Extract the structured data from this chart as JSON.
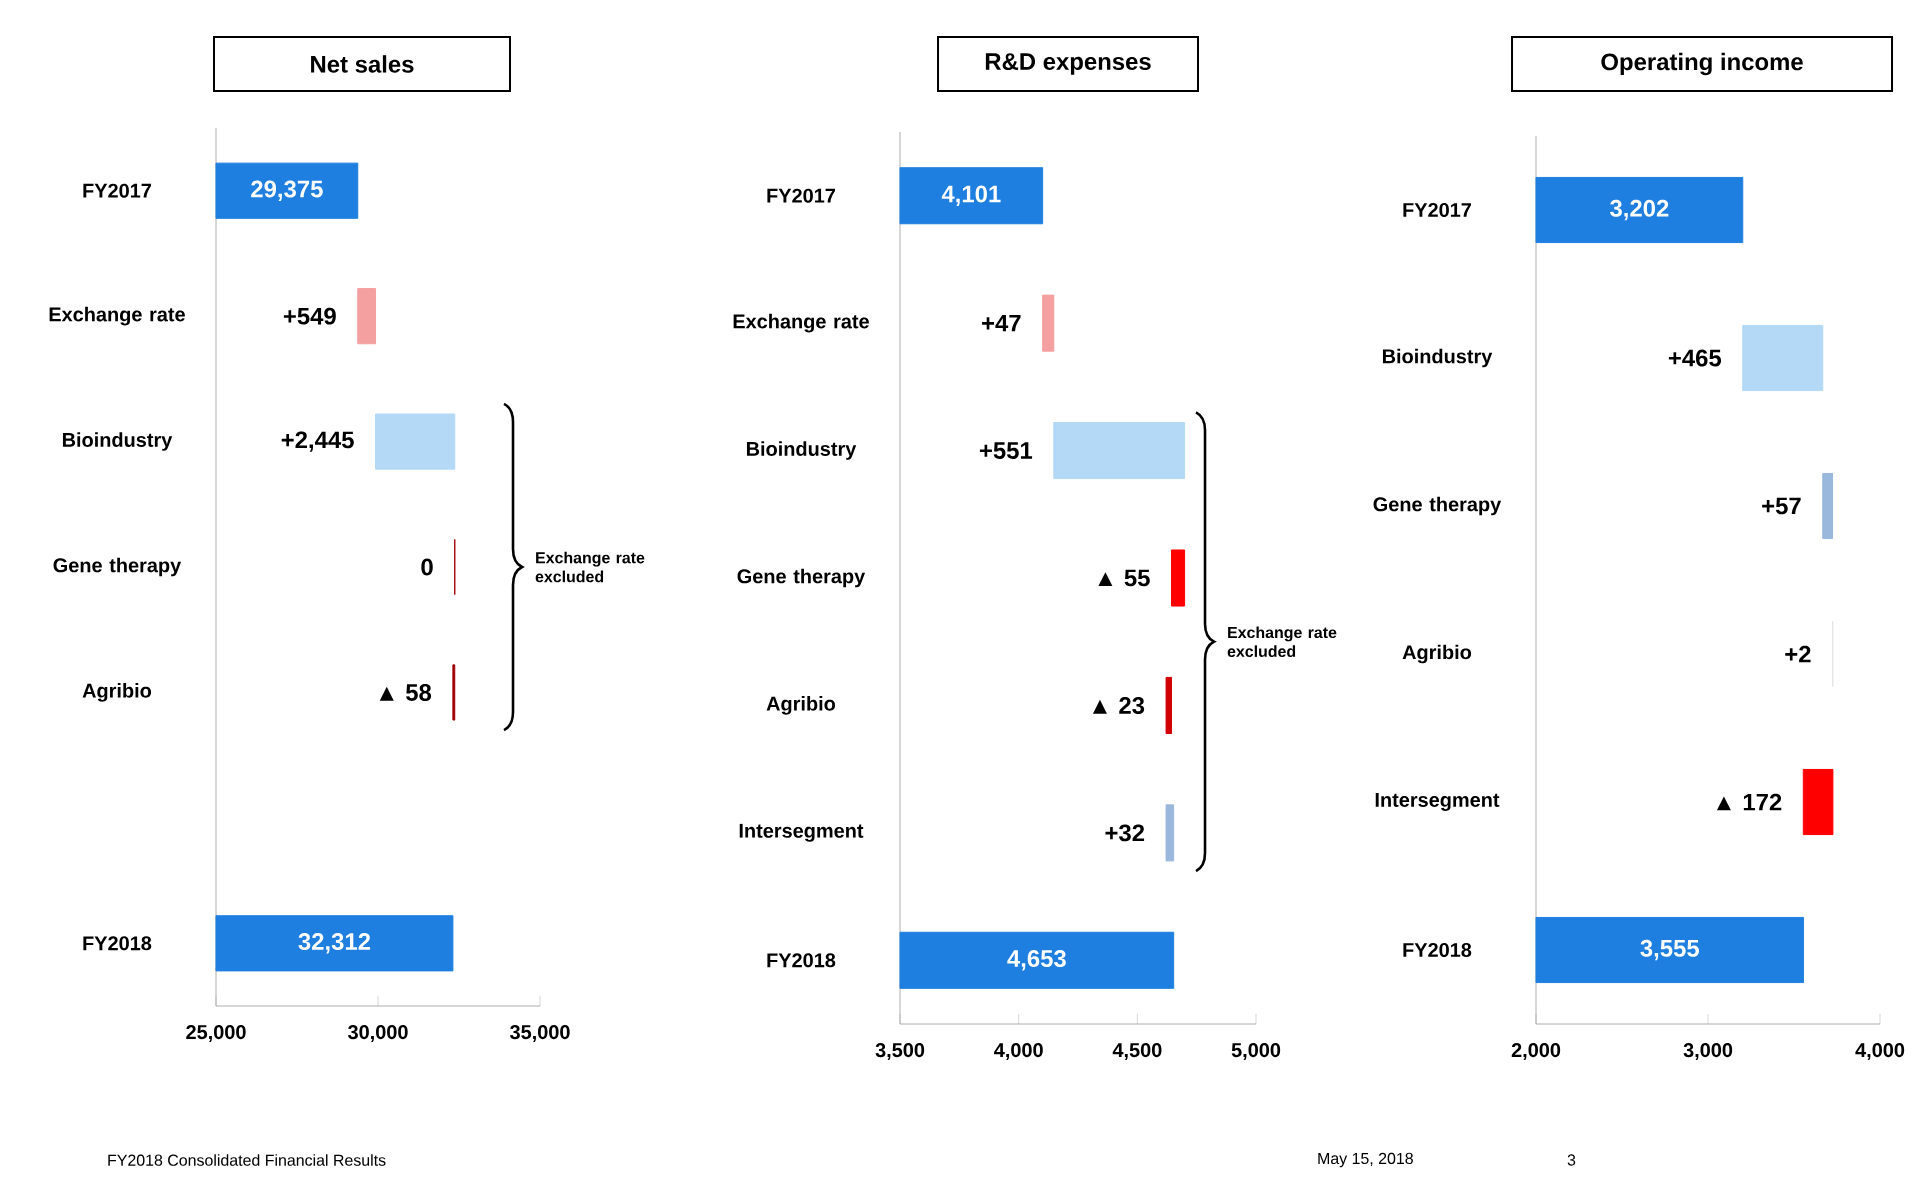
{
  "chart_data": [
    {
      "type": "bar",
      "orientation": "horizontal",
      "title": "Net sales",
      "categories": [
        "FY2017",
        "Exchange rate",
        "Bioindustry",
        "Gene therapy",
        "Agribio",
        null,
        "FY2018"
      ],
      "values": [
        29375,
        549,
        2445,
        0,
        -58,
        null,
        32312
      ],
      "base": [
        null,
        29375,
        29924,
        32369,
        32369,
        null,
        null
      ],
      "colors": [
        "#1f7fe0",
        "#f4a0a0",
        "#b3d9f7",
        "#a00000",
        "#a00000",
        "#1f7fe0",
        "#1f7fe0"
      ],
      "value_labels": [
        "29,375",
        "+549",
        "+2,445",
        "0",
        "▲ 58",
        null,
        "32,312"
      ],
      "xlim": [
        25000,
        35000
      ],
      "xticks": [
        {
          "value": 25000,
          "label": "25,000"
        },
        {
          "value": 30000,
          "label": "30,000"
        },
        {
          "value": 35000,
          "label": "35,000"
        }
      ],
      "annotations": [
        "Exchange rate excluded",
        "FY2018 Consolidated Financial Results",
        "May 15, 2018",
        "3"
      ]
    },
    {
      "type": "bar",
      "orientation": "horizontal",
      "title": "R&D expenses",
      "categories": [
        "FY2017",
        "Exchange rate",
        "Bioindustry",
        "Gene therapy",
        "Agribio",
        "Intersegment",
        "FY2018"
      ],
      "values": [
        4101,
        47,
        551,
        -55,
        -23,
        32,
        4653
      ],
      "base": [
        null,
        4101,
        4148,
        4699,
        4644,
        4621,
        null
      ],
      "colors": [
        "#1f7fe0",
        "#f4a0a0",
        "#b3d9f7",
        "#ff0000",
        "#d00000",
        "#9ab8dc",
        "#1f7fe0"
      ],
      "value_labels": [
        "4,101",
        "+47",
        "+551",
        "▲ 55",
        "▲ 23",
        "+32",
        "4,653"
      ],
      "xlim": [
        3500,
        5000
      ],
      "xticks": [
        {
          "value": 3500,
          "label": "3,500"
        },
        {
          "value": 4000,
          "label": "4,000"
        },
        {
          "value": 4500,
          "label": "4,500"
        },
        {
          "value": 5000,
          "label": "5,000"
        }
      ],
      "annotations": [
        "Exchange rate excluded"
      ]
    },
    {
      "type": "bar",
      "orientation": "horizontal",
      "title": "Operating income",
      "categories": [
        "FY2017",
        "Bioindustry",
        "Gene therapy",
        "Agribio",
        "Intersegment",
        "FY2018"
      ],
      "values": [
        3202,
        465,
        57,
        2,
        -172,
        3555
      ],
      "base": [
        null,
        3202,
        3667,
        3724,
        3726,
        null
      ],
      "colors": [
        "#1f7fe0",
        "#b3d9f7",
        "#9ab8dc",
        "#e6e6e6",
        "#ff0000",
        "#1f7fe0"
      ],
      "value_labels": [
        "3,202",
        "+465",
        "+57",
        "+2",
        "▲ 172",
        "3,555"
      ],
      "xlim": [
        2000,
        4000
      ],
      "xticks": [
        {
          "value": 2000,
          "label": "2,000"
        },
        {
          "value": 3000,
          "label": "3,000"
        },
        {
          "value": 4000,
          "label": "4,000"
        }
      ]
    }
  ]
}
